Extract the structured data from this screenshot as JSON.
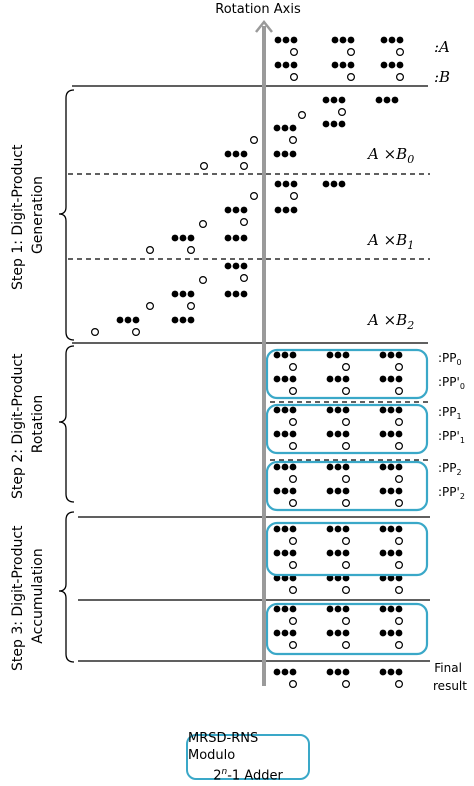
{
  "rotation_axis_label": "Rotation Axis",
  "operand_labels": {
    "a": ":A",
    "b": ":B"
  },
  "step_labels": {
    "step1_line1": "Step 1: Digit-Product",
    "step1_line2": "Generation",
    "step2_line1": "Step 2: Digit-Product",
    "step2_line2": "Rotation",
    "step3_line1": "Step 3: Digit-Product",
    "step3_line2": "Accumulation"
  },
  "product_labels": {
    "p0_base": "A ×B",
    "p0_sub": "0",
    "p1_base": "A ×B",
    "p1_sub": "1",
    "p2_base": "A ×B",
    "p2_sub": "2"
  },
  "pp_labels": {
    "pp0_base": ":PP",
    "pp0_sub": "0",
    "pp0p_base": ":PP'",
    "pp0p_sub": "0",
    "pp1_base": ":PP",
    "pp1_sub": "1",
    "pp1p_base": ":PP'",
    "pp1p_sub": "1",
    "pp2_base": ":PP",
    "pp2_sub": "2",
    "pp2p_base": ":PP'",
    "pp2p_sub": "2"
  },
  "final_label_line1": "Final",
  "final_label_line2": "result",
  "adder_box": {
    "line1": "MRSD-RNS Modulo",
    "line2_pre": "2",
    "line2_sup": "n",
    "line2_post": "-1 Adder"
  },
  "colors": {
    "accent": "#3aa8c8",
    "axis": "#999999",
    "dot": "#000000"
  }
}
